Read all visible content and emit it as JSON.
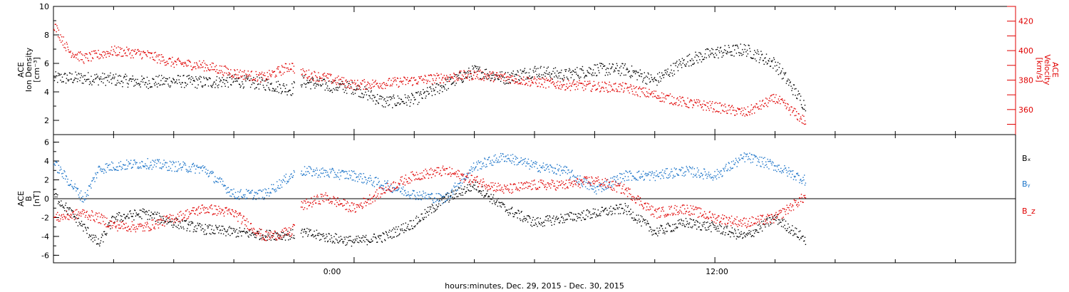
{
  "figure": {
    "xlabel": "hours:minutes, Dec. 29, 2015 - Dec. 30, 2015",
    "x_tick_labels": [
      "0:00",
      "12:00"
    ],
    "x_axis_range_hours": [
      -10,
      22
    ],
    "data_gap_hours": [
      -2.0,
      -1.8
    ],
    "data_end_hour": 15.0
  },
  "chart_data": [
    {
      "type": "scatter",
      "panel": "plasma",
      "left_axis": {
        "label_lines": [
          "ACE",
          "Ion Density",
          "[cm⁻³]"
        ],
        "range": [
          1,
          10
        ],
        "ticks": [
          2,
          4,
          6,
          8,
          10
        ],
        "color": "#000000"
      },
      "right_axis": {
        "label_lines": [
          "ACE",
          "Velocity",
          "[km/s]"
        ],
        "range": [
          343,
          430
        ],
        "ticks": [
          360,
          380,
          400,
          420
        ],
        "color": "#e00000"
      },
      "series": [
        {
          "color": "#000000",
          "axis": "left",
          "x": [
            -10,
            -9,
            -8,
            -7,
            -6,
            -5,
            -4,
            -3,
            -2.1,
            -1.8,
            -1,
            0,
            1,
            2,
            3,
            4,
            5,
            6,
            7,
            8,
            9,
            10,
            11,
            12,
            13,
            14,
            15
          ],
          "y": [
            5.0,
            5.0,
            4.9,
            4.7,
            4.8,
            4.7,
            4.8,
            4.6,
            4.2,
            4.8,
            4.5,
            4.3,
            3.3,
            3.5,
            4.5,
            5.5,
            5.0,
            5.5,
            5.2,
            5.6,
            5.6,
            4.8,
            6.2,
            6.8,
            7.0,
            6.0,
            3.0
          ]
        },
        {
          "color": "#e00000",
          "axis": "right",
          "x": [
            -10,
            -9.5,
            -9,
            -8,
            -7,
            -6,
            -5,
            -4,
            -3,
            -2.1,
            -1.8,
            -1,
            0,
            1,
            2,
            3,
            4,
            5,
            6,
            7,
            8,
            9,
            10,
            11,
            12,
            13,
            14,
            15
          ],
          "y": [
            418,
            400,
            395,
            400,
            398,
            392,
            390,
            385,
            382,
            390,
            385,
            382,
            377,
            378,
            380,
            382,
            384,
            382,
            379,
            377,
            376,
            375,
            370,
            365,
            362,
            358,
            368,
            352
          ]
        }
      ]
    },
    {
      "type": "scatter",
      "panel": "magnetic-field",
      "left_axis": {
        "label_lines": [
          "ACE",
          "B",
          "[nT]"
        ],
        "range": [
          -6.8,
          6.8
        ],
        "ticks": [
          -6,
          -4,
          -2,
          0,
          2,
          4,
          6
        ],
        "color": "#000000"
      },
      "zero_line": 0,
      "legend": [
        "Bₓ",
        "Bᵧ",
        "B_z"
      ],
      "legend_placement": "right",
      "series": [
        {
          "name": "Bₓ",
          "color": "#000000",
          "x": [
            -10,
            -9,
            -8.5,
            -8,
            -7,
            -6,
            -5,
            -4,
            -3,
            -2.1,
            -1.8,
            -1,
            0,
            1,
            2,
            3,
            4,
            5,
            6,
            7,
            8,
            9,
            10,
            11,
            12,
            13,
            14,
            15
          ],
          "y": [
            0.5,
            -3.0,
            -4.8,
            -2.0,
            -1.5,
            -2.5,
            -3.2,
            -3.5,
            -3.8,
            -3.8,
            -3.5,
            -4.0,
            -4.5,
            -4.0,
            -2.5,
            0.0,
            1.5,
            -1.0,
            -2.5,
            -2.0,
            -1.5,
            -1.0,
            -3.5,
            -2.5,
            -3.0,
            -4.0,
            -2.0,
            -4.3
          ]
        },
        {
          "name": "Bᵧ",
          "color": "#1a73c8",
          "x": [
            -10,
            -9,
            -8.5,
            -8,
            -7,
            -6,
            -5,
            -4,
            -3,
            -2.1,
            -1.8,
            -1,
            0,
            1,
            2,
            3,
            4,
            5,
            6,
            7,
            8,
            9,
            10,
            11,
            12,
            13,
            14,
            15
          ],
          "y": [
            3.8,
            0.0,
            3.2,
            3.5,
            3.8,
            3.5,
            3.2,
            0.5,
            0.5,
            2.5,
            3.0,
            2.8,
            2.5,
            1.5,
            0.5,
            0.0,
            3.5,
            4.5,
            3.5,
            3.0,
            1.0,
            2.5,
            2.5,
            3.0,
            2.5,
            4.5,
            3.5,
            2.0
          ]
        },
        {
          "name": "B_z",
          "color": "#e00000",
          "x": [
            -10,
            -9,
            -8.5,
            -8,
            -7,
            -6,
            -5,
            -4,
            -3,
            -2.1,
            -1.8,
            -1,
            0,
            1,
            2,
            3,
            4,
            5,
            6,
            7,
            8,
            9,
            10,
            11,
            12,
            13,
            14,
            15
          ],
          "y": [
            -2.0,
            -1.5,
            -2.0,
            -2.8,
            -3.0,
            -2.0,
            -1.0,
            -1.5,
            -4.0,
            -3.5,
            -0.8,
            0.2,
            -1.0,
            1.0,
            2.5,
            3.0,
            2.0,
            1.0,
            1.5,
            1.5,
            2.0,
            1.0,
            -1.5,
            -1.0,
            -2.0,
            -2.5,
            -2.0,
            0.3
          ]
        }
      ]
    }
  ]
}
